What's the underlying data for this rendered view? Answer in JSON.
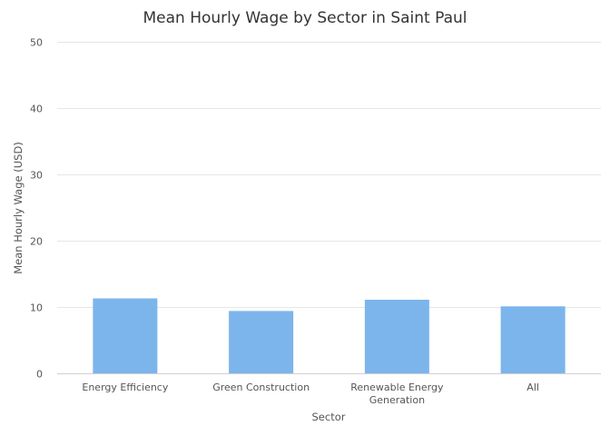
{
  "chart_data": {
    "type": "bar",
    "title": "Mean Hourly Wage by Sector in Saint Paul",
    "xlabel": "Sector",
    "ylabel": "Mean Hourly Wage (USD)",
    "categories": [
      [
        "Energy Efficiency"
      ],
      [
        "Green Construction"
      ],
      [
        "Renewable Energy",
        "Generation"
      ],
      [
        "All"
      ]
    ],
    "values": [
      11.3,
      9.4,
      11.1,
      10.1
    ],
    "ylim": [
      0,
      50
    ],
    "yticks": [
      0,
      10,
      20,
      30,
      40,
      50
    ],
    "grid": true,
    "legend": "none",
    "bar_color": "#7cb5ec"
  }
}
